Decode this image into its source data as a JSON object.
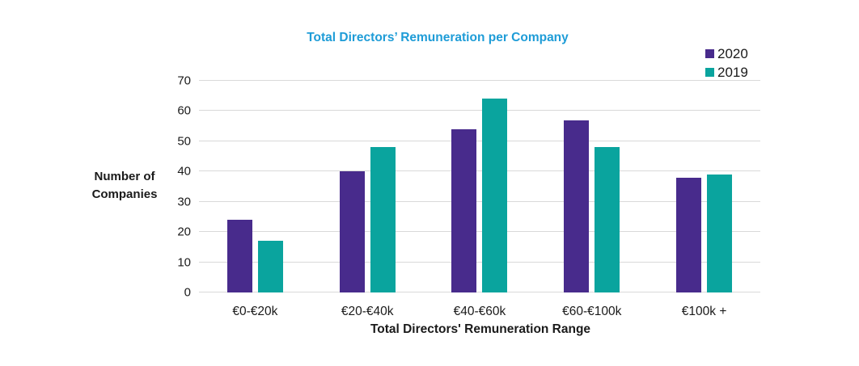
{
  "chart_data": {
    "type": "bar",
    "title": "Total Directors’ Remuneration per Company",
    "title_color": "#1e9cd7",
    "categories": [
      "€0-€20k",
      "€20-€40k",
      "€40-€60k",
      "€60-€100k",
      "€100k +"
    ],
    "series": [
      {
        "name": "2020",
        "color": "#482b8c",
        "values": [
          24,
          40,
          54,
          57,
          38
        ]
      },
      {
        "name": "2019",
        "color": "#0aa49e",
        "values": [
          17,
          48,
          64,
          48,
          39
        ]
      }
    ],
    "xlabel": "Total Directors' Remuneration Range",
    "ylabel": "Number of\nCompanies",
    "ylim": [
      0,
      70
    ],
    "yticks": [
      0,
      10,
      20,
      30,
      40,
      50,
      60,
      70
    ],
    "grid": true,
    "gridline_color": "#d9d9d9",
    "legend_position": "top-right"
  }
}
